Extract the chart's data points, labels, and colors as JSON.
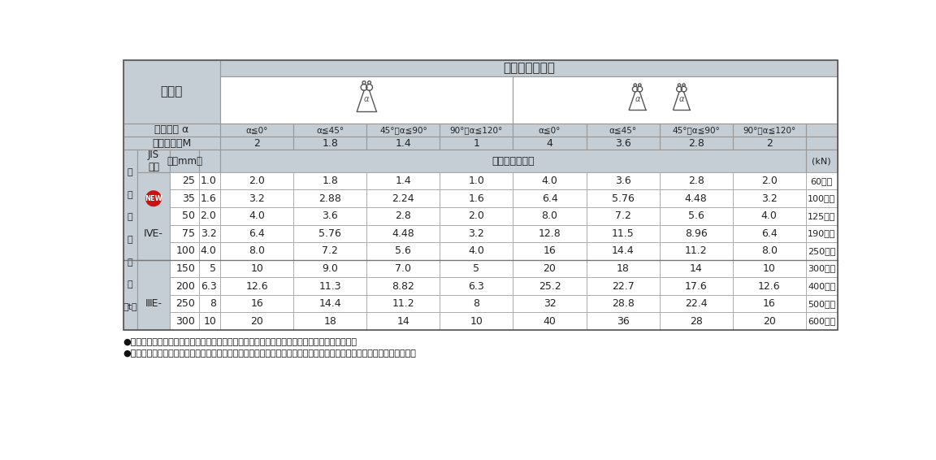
{
  "title_basket": "バスケットづり",
  "label_tsuri": "つり方",
  "header_angle": "つり角度 α",
  "header_mode": "モード係数M",
  "header_jis": "JIS\n表示",
  "header_width": "幅（mm）",
  "header_unit": "(kN)",
  "header_basket_span": "バスケットづり",
  "left_label_lines": [
    "最",
    "大",
    "使",
    "用",
    "荷",
    "重",
    "（t）"
  ],
  "angle_labels": [
    "α≦0°",
    "α≦45°",
    "45°＜α≦90°",
    "90°＜α≦120°",
    "α≦0°",
    "α≦45°",
    "45°＜α≦90°",
    "90°＜α≦120°"
  ],
  "mode_values": [
    "2",
    "1.8",
    "1.4",
    "1",
    "4",
    "3.6",
    "2.8",
    "2"
  ],
  "width_values": [
    "25",
    "35",
    "50",
    "75",
    "100",
    "150",
    "200",
    "250",
    "300"
  ],
  "load_values": [
    "1.0",
    "1.6",
    "2.0",
    "3.2",
    "4.0",
    "5",
    "6.3",
    "8",
    "10"
  ],
  "data_rows": [
    [
      "2.0",
      "1.8",
      "1.4",
      "1.0",
      "4.0",
      "3.6",
      "2.8",
      "2.0"
    ],
    [
      "3.2",
      "2.88",
      "2.24",
      "1.6",
      "6.4",
      "5.76",
      "4.48",
      "3.2"
    ],
    [
      "4.0",
      "3.6",
      "2.8",
      "2.0",
      "8.0",
      "7.2",
      "5.6",
      "4.0"
    ],
    [
      "6.4",
      "5.76",
      "4.48",
      "3.2",
      "12.8",
      "11.5",
      "8.96",
      "6.4"
    ],
    [
      "8.0",
      "7.2",
      "5.6",
      "4.0",
      "16",
      "14.4",
      "11.2",
      "8.0"
    ],
    [
      "10",
      "9.0",
      "7.0",
      "5",
      "20",
      "18",
      "14",
      "10"
    ],
    [
      "12.6",
      "11.3",
      "8.82",
      "6.3",
      "25.2",
      "22.7",
      "17.6",
      "12.6"
    ],
    [
      "16",
      "14.4",
      "11.2",
      "8",
      "32",
      "28.8",
      "22.4",
      "16"
    ],
    [
      "20",
      "18",
      "14",
      "10",
      "40",
      "36",
      "28",
      "20"
    ]
  ],
  "kn_values": [
    "60以上",
    "100以上",
    "125以上",
    "190以上",
    "250以上",
    "300以上",
    "400以上",
    "500以上",
    "600以上"
  ],
  "footnote1": "●スリングの使用荷重は荷の吊り方により変化します。上記の使用荷重以下でご使用ください。",
  "footnote2": "●角張った物を吊り上げる時や、横滑りのおそれのある場合、スリング保護のためにコーナーパットをご使用ください。",
  "bg_color": "#ffffff",
  "header_bg": "#c5cdd5",
  "cell_bg_white": "#ffffff",
  "border_color": "#999999",
  "new_badge_color": "#cc1111",
  "IVE_rows": [
    0,
    1,
    2,
    3,
    4
  ],
  "IIIE_rows": [
    5,
    6,
    7,
    8
  ],
  "new_row": 1
}
